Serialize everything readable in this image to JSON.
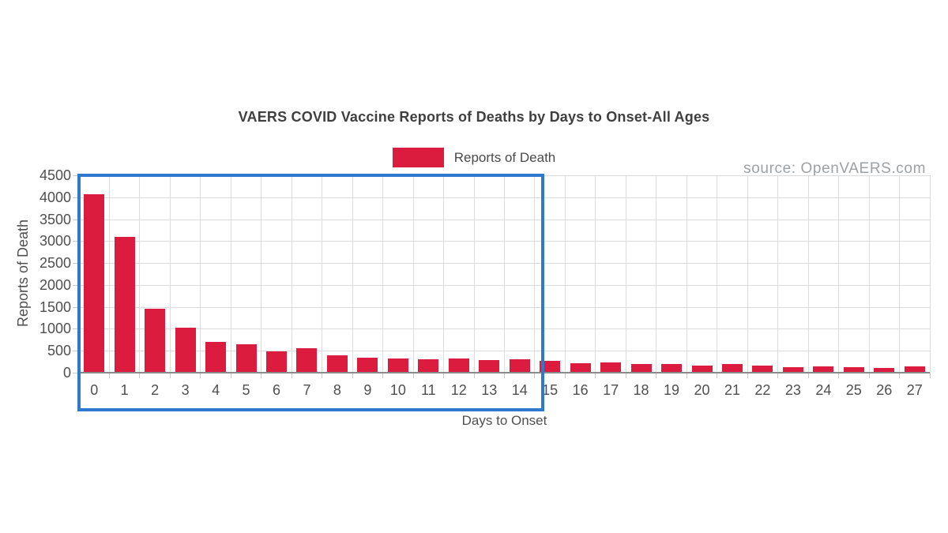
{
  "legend": {
    "label": "Reports of Death",
    "swatch_color": "#DC1C3E"
  },
  "source": {
    "label": "source: OpenVAERS.com"
  },
  "chart_data": {
    "type": "bar",
    "title": "VAERS COVID Vaccine Reports of Deaths by Days to Onset-All Ages",
    "xlabel": "Days to Onset",
    "ylabel": "Reports of Death",
    "categories": [
      "0",
      "1",
      "2",
      "3",
      "4",
      "5",
      "6",
      "7",
      "8",
      "9",
      "10",
      "11",
      "12",
      "13",
      "14",
      "15",
      "16",
      "17",
      "18",
      "19",
      "20",
      "21",
      "22",
      "23",
      "24",
      "25",
      "26",
      "27"
    ],
    "values": [
      4060,
      3090,
      1460,
      1030,
      710,
      640,
      490,
      550,
      400,
      350,
      330,
      300,
      320,
      290,
      300,
      270,
      220,
      230,
      190,
      200,
      170,
      200,
      170,
      130,
      150,
      130,
      110,
      140
    ],
    "ylim": [
      0,
      4500
    ],
    "ytick_step": 500,
    "grid": true,
    "legend_position": "top",
    "bar_color": "#DC1C3E",
    "grid_color": "#dcdcdc",
    "highlight_box": {
      "from_day": 0,
      "to_day": 14,
      "color": "#2E78CE"
    }
  }
}
